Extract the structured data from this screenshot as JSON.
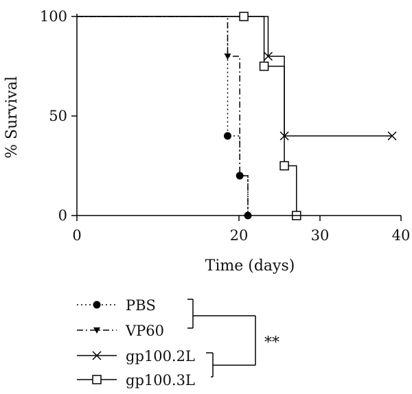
{
  "chart_data": {
    "type": "line",
    "subtype": "kaplan-meier",
    "title": "",
    "xlabel": "Time (days)",
    "ylabel": "% Survival",
    "xlim": [
      0,
      40
    ],
    "ylim": [
      0,
      100
    ],
    "xticks": [
      0,
      20,
      30,
      40
    ],
    "yticks": [
      0,
      50,
      100
    ],
    "grid": false,
    "legend_placement": "bottom",
    "series": [
      {
        "name": "PBS",
        "line_style": "dotted",
        "marker": "filled-circle",
        "steps": [
          [
            0,
            100
          ],
          [
            18.6,
            40
          ],
          [
            20.1,
            20
          ],
          [
            21.1,
            0
          ]
        ],
        "markers": [
          [
            18.6,
            40
          ],
          [
            20.1,
            20
          ],
          [
            21.1,
            0
          ]
        ]
      },
      {
        "name": "VP60",
        "line_style": "dash-dot",
        "marker": "filled-triangle-down",
        "steps": [
          [
            0,
            100
          ],
          [
            18.6,
            80
          ],
          [
            20.1,
            20
          ],
          [
            21.1,
            0
          ]
        ],
        "markers": [
          [
            18.6,
            80
          ]
        ]
      },
      {
        "name": "gp100.2L",
        "line_style": "solid",
        "marker": "x",
        "steps": [
          [
            0,
            100
          ],
          [
            23.6,
            80
          ],
          [
            25.6,
            40
          ],
          [
            38.9,
            40
          ]
        ],
        "markers": [
          [
            23.6,
            80
          ],
          [
            25.6,
            40
          ],
          [
            38.9,
            40
          ]
        ]
      },
      {
        "name": "gp100.3L",
        "line_style": "solid",
        "marker": "open-square",
        "steps": [
          [
            0,
            100
          ],
          [
            23.1,
            75
          ],
          [
            25.6,
            25
          ],
          [
            27.1,
            0
          ]
        ],
        "markers": [
          [
            20.6,
            100
          ],
          [
            23.1,
            75
          ],
          [
            25.6,
            25
          ],
          [
            27.1,
            0
          ]
        ]
      }
    ],
    "significance": {
      "label": "**",
      "groups": [
        [
          "PBS",
          "VP60"
        ],
        [
          "gp100.2L",
          "gp100.3L"
        ]
      ]
    }
  }
}
